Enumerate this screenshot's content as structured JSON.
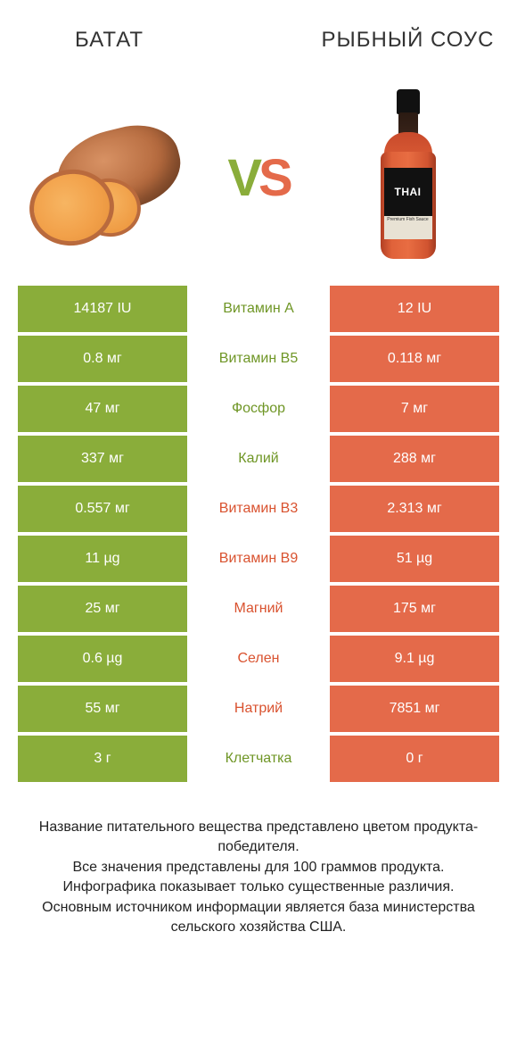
{
  "header": {
    "left": "БАТАТ",
    "right": "РЫБНЫЙ СОУС"
  },
  "vs": {
    "v": "V",
    "s": "S"
  },
  "bottle": {
    "label": "THAI",
    "sublabel": "Premium Fish Sauce"
  },
  "colors": {
    "left_bg": "#8aad3a",
    "right_bg": "#e46a4a",
    "mid_left_text": "#6f9626",
    "mid_right_text": "#d9522f",
    "cell_text": "#ffffff"
  },
  "table": {
    "rows": [
      {
        "left": "14187 IU",
        "mid": "Витамин A",
        "winner": "left"
      },
      {
        "left": "0.8 мг",
        "mid": "Витамин B5",
        "winner": "left"
      },
      {
        "left": "47 мг",
        "mid": "Фосфор",
        "winner": "left"
      },
      {
        "left": "337 мг",
        "mid": "Калий",
        "winner": "left"
      },
      {
        "left": "0.557 мг",
        "mid": "Витамин B3",
        "winner": "right"
      },
      {
        "left": "11 µg",
        "mid": "Витамин B9",
        "winner": "right"
      },
      {
        "left": "25 мг",
        "mid": "Магний",
        "winner": "right"
      },
      {
        "left": "0.6 µg",
        "mid": "Селен",
        "winner": "right"
      },
      {
        "left": "55 мг",
        "mid": "Натрий",
        "winner": "right"
      },
      {
        "left": "3 г",
        "mid": "Клетчатка",
        "winner": "left"
      }
    ],
    "right_values": [
      "12 IU",
      "0.118 мг",
      "7 мг",
      "288 мг",
      "2.313 мг",
      "51 µg",
      "175 мг",
      "9.1 µg",
      "7851 мг",
      "0 г"
    ]
  },
  "footer": {
    "l1": "Название питательного вещества представлено цветом продукта-победителя.",
    "l2": "Все значения представлены для 100 граммов продукта.",
    "l3": "Инфографика показывает только существенные различия.",
    "l4": "Основным источником информации является база министерства сельского хозяйства США."
  }
}
